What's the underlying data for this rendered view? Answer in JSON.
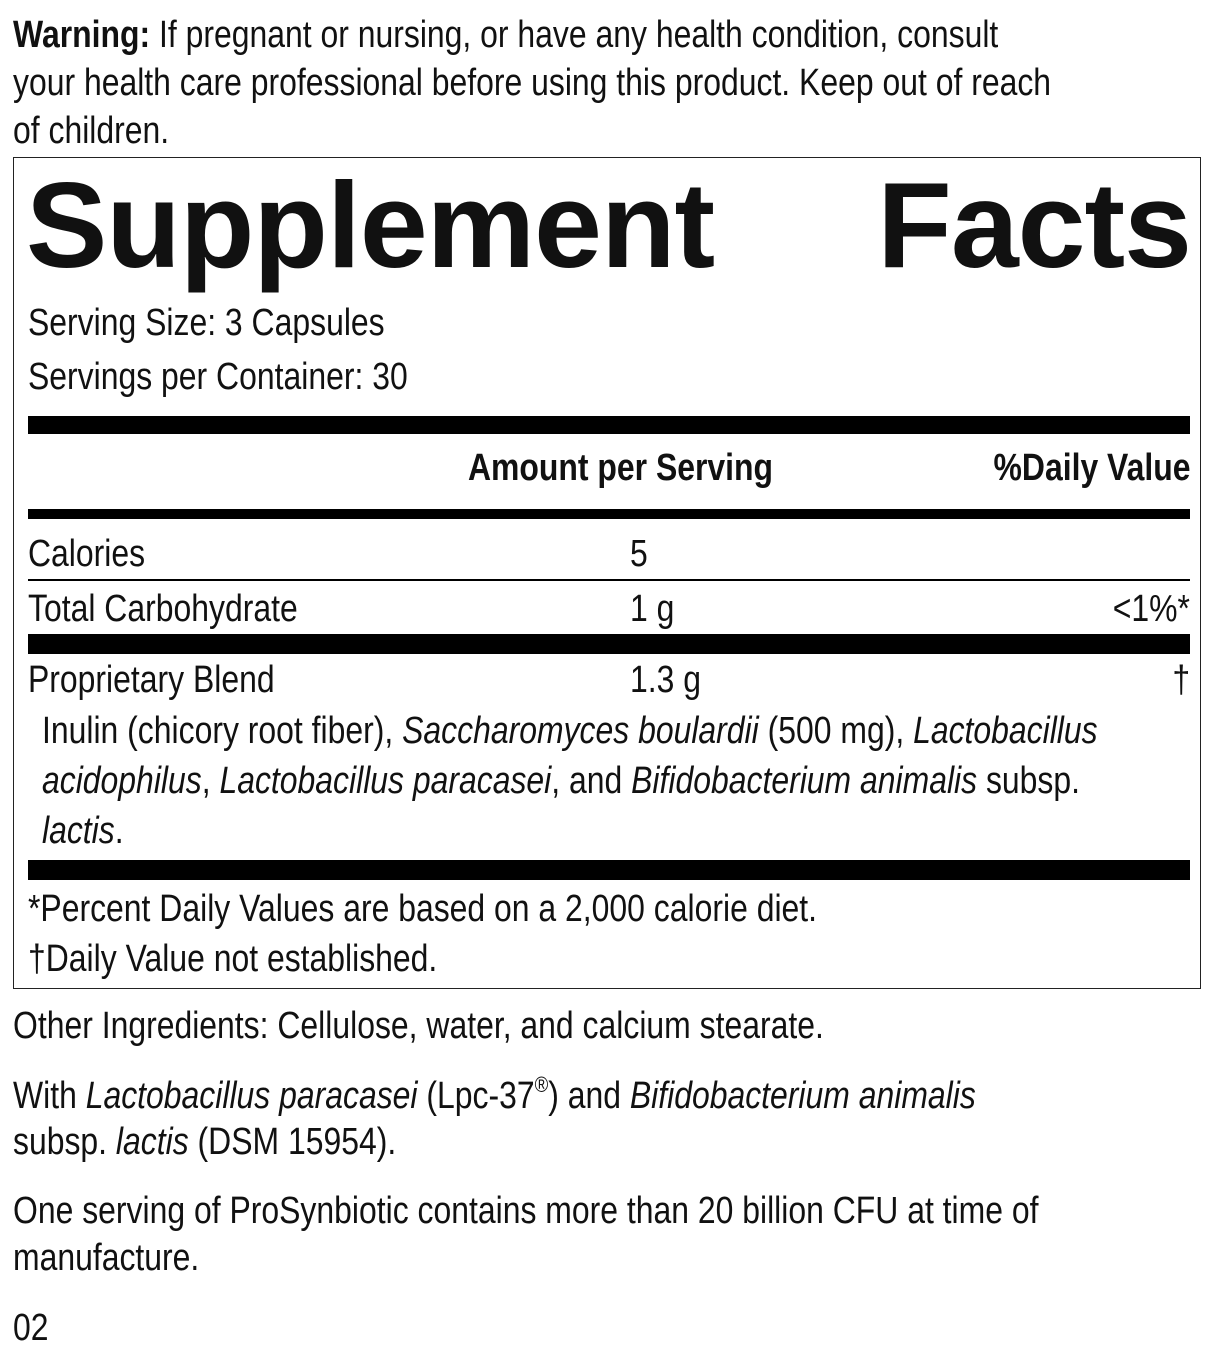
{
  "warning": {
    "label": "Warning:",
    "line1": " If pregnant or nursing, or have any health condition, consult",
    "line2": "your health care professional before using this product. Keep out of reach",
    "line3": "of children."
  },
  "facts": {
    "title_word1": "Supplement",
    "title_word2": "Facts",
    "serving_size": "Serving Size: 3 Capsules",
    "servings_per_container": "Servings per Container: 30",
    "header_amount": "Amount per Serving",
    "header_dv": "%Daily Value",
    "rows": [
      {
        "name": "Calories",
        "amount": "5",
        "dv": ""
      },
      {
        "name": "Total Carbohydrate",
        "amount": "1 g",
        "dv": "<1%*"
      },
      {
        "name": "Proprietary Blend",
        "amount": "1.3 g",
        "dv": "†"
      }
    ],
    "blend": {
      "a": "Inulin (chicory root fiber), ",
      "b": "Saccharomyces boulardii",
      "c": " (500 mg), ",
      "d": "Lactobacillus",
      "e": "acidophilus",
      "f": ", ",
      "g": "Lactobacillus paracasei",
      "h": ", and ",
      "i": "Bifidobacterium animalis",
      "j": " subsp.",
      "k": "lactis",
      "l": "."
    },
    "footnote1": "*Percent Daily Values are based on a 2,000 calorie diet.",
    "footnote2": "†Daily Value not established."
  },
  "other_ingredients": "Other Ingredients: Cellulose, water, and calcium stearate.",
  "with": {
    "a": "With ",
    "b": "Lactobacillus paracasei",
    "c": " (Lpc-37",
    "reg": "®",
    "d": ") and ",
    "e": "Bifidobacterium animalis",
    "f": "subsp. ",
    "g": "lactis",
    "h": " (DSM 15954)."
  },
  "cfu": {
    "line1": "One serving of ProSynbiotic contains more than 20 billion CFU at time of",
    "line2": "manufacture."
  },
  "code": "02"
}
